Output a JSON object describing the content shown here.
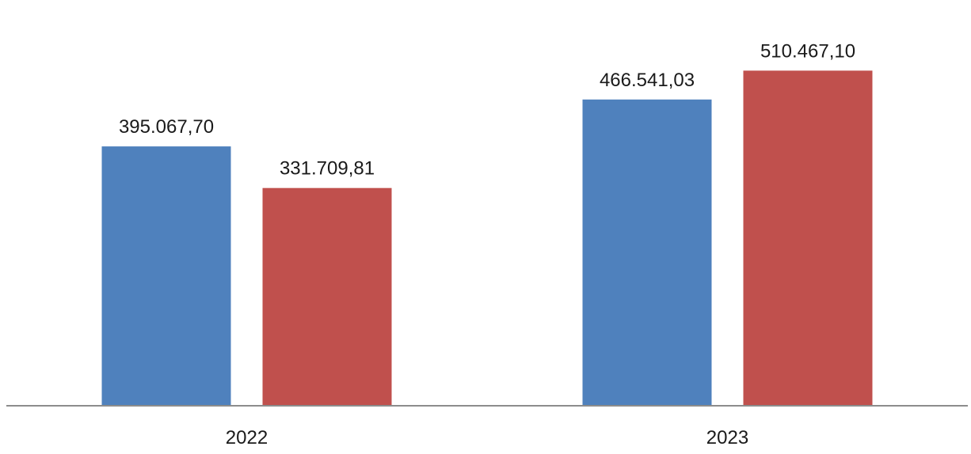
{
  "chart_data": {
    "type": "bar",
    "categories": [
      "2022",
      "2023"
    ],
    "series": [
      {
        "color": "#4f81bd",
        "values": [
          395067.7,
          466541.03
        ],
        "labels": [
          "395.067,70",
          "466.541,03"
        ]
      },
      {
        "color": "#c0504d",
        "values": [
          331709.81,
          510467.1
        ],
        "labels": [
          "331.709,81",
          "510.467,10"
        ]
      }
    ],
    "ylim": [
      0,
      600000
    ],
    "grid": false,
    "legend": "none",
    "title": "",
    "xlabel": "",
    "ylabel": ""
  }
}
